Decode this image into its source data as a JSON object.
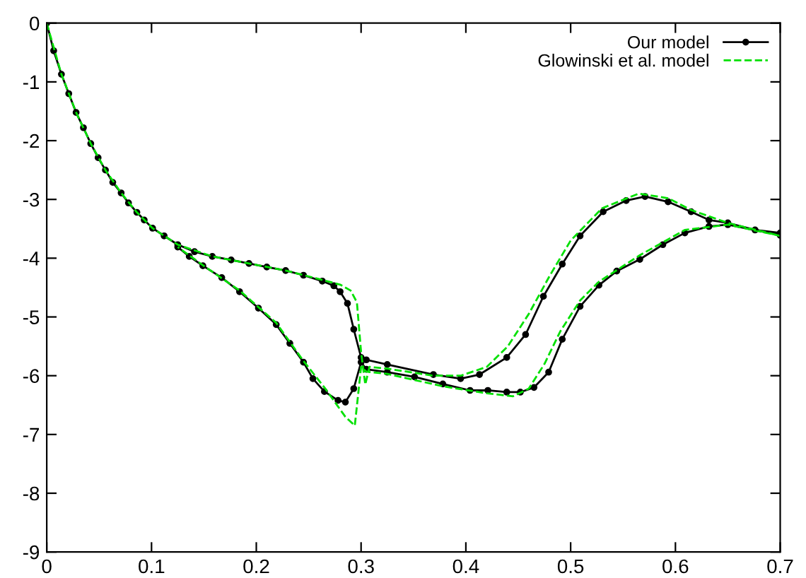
{
  "chart_data": {
    "type": "line",
    "xlim": [
      0,
      0.7
    ],
    "ylim": [
      -9,
      0
    ],
    "xticks": [
      0,
      0.1,
      0.2,
      0.3,
      0.4,
      0.5,
      0.6,
      0.7
    ],
    "yticks": [
      -9,
      -8,
      -7,
      -6,
      -5,
      -4,
      -3,
      -2,
      -1,
      0
    ],
    "grid": false,
    "legend": "top right",
    "series": [
      {
        "name": "Our model",
        "color": "#000000",
        "marker": "circle",
        "line_style": "solid",
        "x": [
          0,
          0.0066,
          0.014,
          0.021,
          0.028,
          0.035,
          0.042,
          0.049,
          0.056,
          0.063,
          0.071,
          0.078,
          0.086,
          0.093,
          0.101,
          0.112,
          0.125,
          0.141,
          0.158,
          0.176,
          0.193,
          0.21,
          0.228,
          0.245,
          0.263,
          0.274,
          0.28,
          0.287,
          0.293,
          0.3,
          0.305,
          0.325,
          0.369,
          0.395,
          0.413,
          0.439,
          0.457,
          0.474,
          0.492,
          0.509,
          0.531,
          0.553,
          0.571,
          0.593,
          0.615,
          0.632,
          0.65,
          0.676,
          0.7,
          0.7,
          0.65,
          0.632,
          0.609,
          0.588,
          0.566,
          0.544,
          0.527,
          0.509,
          0.492,
          0.479,
          0.465,
          0.452,
          0.439,
          0.421,
          0.404,
          0.378,
          0.351,
          0.325,
          0.305,
          0.3,
          0.293,
          0.285,
          0.278,
          0.265,
          0.254,
          0.245,
          0.232,
          0.219,
          0.202,
          0.184,
          0.167,
          0.149,
          0.136,
          0.125
        ],
        "values": [
          0,
          -0.47,
          -0.87,
          -1.2,
          -1.52,
          -1.78,
          -2.05,
          -2.29,
          -2.5,
          -2.71,
          -2.89,
          -3.06,
          -3.22,
          -3.35,
          -3.49,
          -3.62,
          -3.77,
          -3.89,
          -3.97,
          -4.03,
          -4.09,
          -4.15,
          -4.21,
          -4.29,
          -4.39,
          -4.47,
          -4.57,
          -4.77,
          -5.21,
          -5.69,
          -5.73,
          -5.81,
          -5.98,
          -6.05,
          -5.98,
          -5.69,
          -5.3,
          -4.65,
          -4.1,
          -3.62,
          -3.21,
          -3.02,
          -2.95,
          -3.04,
          -3.21,
          -3.35,
          -3.4,
          -3.52,
          -3.57,
          -3.61,
          -3.43,
          -3.46,
          -3.57,
          -3.77,
          -4.02,
          -4.22,
          -4.46,
          -4.82,
          -5.38,
          -5.94,
          -6.2,
          -6.28,
          -6.28,
          -6.25,
          -6.25,
          -6.14,
          -6.02,
          -5.94,
          -5.89,
          -5.77,
          -6.22,
          -6.45,
          -6.42,
          -6.27,
          -6.05,
          -5.77,
          -5.45,
          -5.13,
          -4.85,
          -4.57,
          -4.33,
          -4.13,
          -3.97,
          -3.81
        ]
      },
      {
        "name": "Glowinski et al. model",
        "color": "#00e000",
        "marker": "none",
        "line_style": "dashed",
        "x": [
          0,
          0.014,
          0.028,
          0.042,
          0.056,
          0.071,
          0.086,
          0.101,
          0.125,
          0.158,
          0.193,
          0.228,
          0.263,
          0.28,
          0.29,
          0.296,
          0.3,
          0.304,
          0.308,
          0.325,
          0.369,
          0.395,
          0.42,
          0.44,
          0.46,
          0.48,
          0.5,
          0.53,
          0.565,
          0.593,
          0.615,
          0.65,
          0.7,
          0.7,
          0.65,
          0.609,
          0.566,
          0.527,
          0.509,
          0.49,
          0.475,
          0.46,
          0.445,
          0.42,
          0.378,
          0.325,
          0.305,
          0.3,
          0.294,
          0.285,
          0.265,
          0.245,
          0.219,
          0.184,
          0.149,
          0.125
        ],
        "values": [
          0,
          -0.87,
          -1.52,
          -2.05,
          -2.5,
          -2.89,
          -3.22,
          -3.49,
          -3.77,
          -3.97,
          -4.09,
          -4.21,
          -4.37,
          -4.45,
          -4.55,
          -4.75,
          -5.6,
          -6.15,
          -5.85,
          -5.88,
          -6.0,
          -6.0,
          -5.85,
          -5.5,
          -4.95,
          -4.3,
          -3.7,
          -3.15,
          -2.9,
          -2.98,
          -3.18,
          -3.4,
          -3.62,
          -3.62,
          -3.43,
          -3.52,
          -3.95,
          -4.4,
          -4.72,
          -5.25,
          -5.8,
          -6.22,
          -6.35,
          -6.3,
          -6.18,
          -5.97,
          -5.93,
          -5.85,
          -6.85,
          -6.7,
          -6.2,
          -5.75,
          -5.1,
          -4.55,
          -4.12,
          -3.81
        ]
      }
    ]
  }
}
